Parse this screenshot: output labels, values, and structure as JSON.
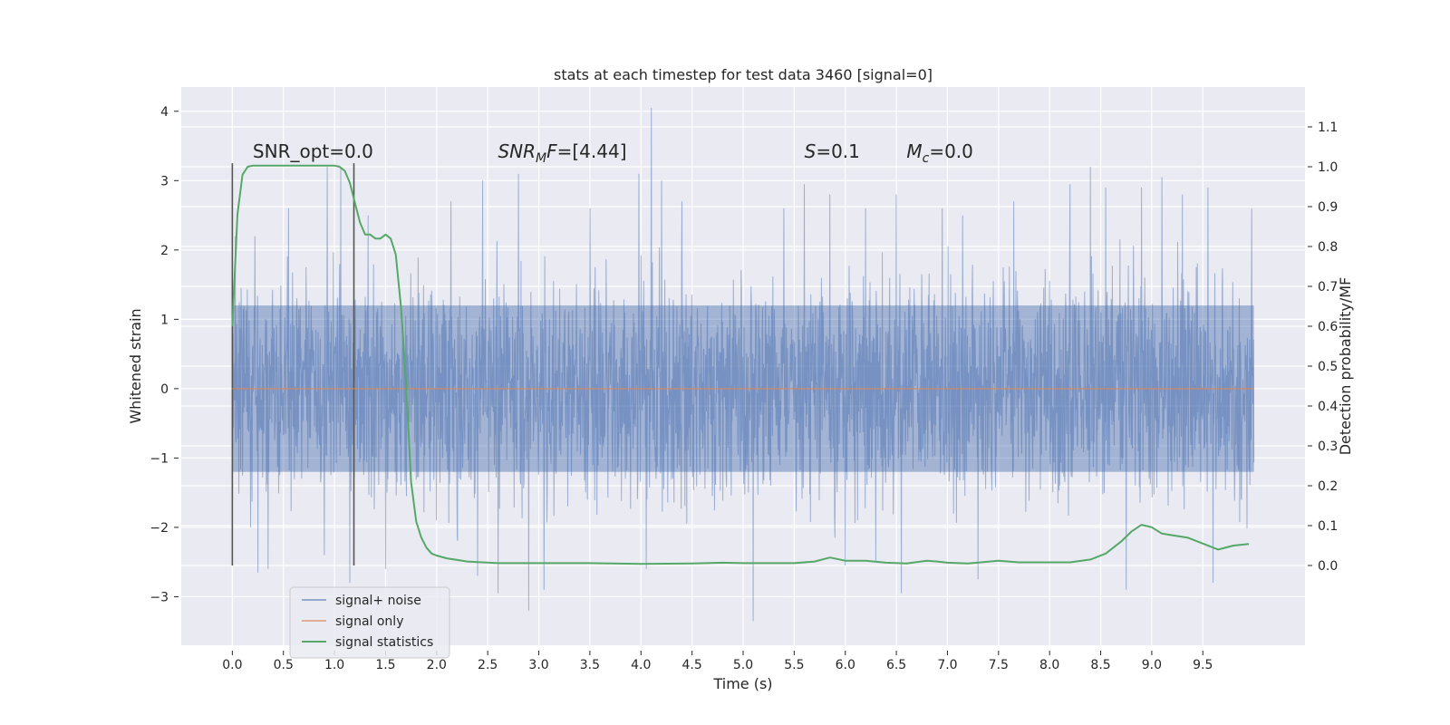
{
  "chart_data": {
    "type": "line",
    "title": "stats at each timestep for test data 3460 [signal=0]",
    "xlabel": "Time (s)",
    "ylabel": "Whitened strain",
    "y2label": "Detection probability/MF",
    "xlim": [
      -0.5,
      10.5
    ],
    "ylim": [
      -3.7,
      4.35
    ],
    "y2lim": [
      -0.2,
      1.2
    ],
    "x_ticks": [
      0.0,
      0.5,
      1.0,
      1.5,
      2.0,
      2.5,
      3.0,
      3.5,
      4.0,
      4.5,
      5.0,
      5.5,
      6.0,
      6.5,
      7.0,
      7.5,
      8.0,
      8.5,
      9.0,
      9.5
    ],
    "x_tick_labels": [
      "0.0",
      "0.5",
      "1.0",
      "1.5",
      "2.0",
      "2.5",
      "3.0",
      "3.5",
      "4.0",
      "4.5",
      "5.0",
      "5.5",
      "6.0",
      "6.5",
      "7.0",
      "7.5",
      "8.0",
      "8.5",
      "9.0",
      "9.5"
    ],
    "y_ticks": [
      -3,
      -2,
      -1,
      0,
      1,
      2,
      3,
      4
    ],
    "y_tick_labels": [
      "−3",
      "−2",
      "−1",
      "0",
      "1",
      "2",
      "3",
      "4"
    ],
    "y2_ticks": [
      0.0,
      0.1,
      0.2,
      0.3,
      0.4,
      0.5,
      0.6,
      0.7,
      0.8,
      0.9,
      1.0,
      1.1
    ],
    "y2_tick_labels": [
      "0.0",
      "0.1",
      "0.2",
      "0.3",
      "0.4",
      "0.5",
      "0.6",
      "0.7",
      "0.8",
      "0.9",
      "1.0",
      "1.1"
    ],
    "grid": true,
    "legend_position": "lower-left",
    "annotations": [
      {
        "text": "SNR_opt=0.0",
        "x": 0.2,
        "y": 3.25
      },
      {
        "text": "SNR",
        "sub": "M",
        "suffix": "F=[4.44]",
        "italic": true,
        "x": 2.6,
        "y": 3.25
      },
      {
        "text": "S",
        "suffix": "=0.1",
        "italic": true,
        "x": 5.6,
        "y": 3.25
      },
      {
        "text": "M",
        "sub": "c",
        "suffix": "=0.0",
        "italic": true,
        "x": 6.6,
        "y": 3.25
      }
    ],
    "vlines": [
      {
        "x": 0.0,
        "ymin": -2.55,
        "ymax": 3.25
      },
      {
        "x": 1.19,
        "ymin": -2.55,
        "ymax": 3.25
      }
    ],
    "series": [
      {
        "name": "signal+ noise",
        "color": "#4c72b0",
        "x_range": [
          0.0,
          10.0
        ],
        "band": 1.2,
        "peaks": [
          [
            0.03,
            2.2
          ],
          [
            0.18,
            -2.0
          ],
          [
            0.22,
            2.2
          ],
          [
            0.25,
            -2.65
          ],
          [
            0.35,
            -2.6
          ],
          [
            0.55,
            2.6
          ],
          [
            0.9,
            -2.4
          ],
          [
            0.93,
            3.2
          ],
          [
            1.06,
            3.2
          ],
          [
            1.15,
            -2.8
          ],
          [
            1.33,
            2.5
          ],
          [
            1.5,
            -2.6
          ],
          [
            2.14,
            2.7
          ],
          [
            2.4,
            -2.7
          ],
          [
            2.45,
            3.0
          ],
          [
            2.6,
            -2.95
          ],
          [
            2.8,
            3.1
          ],
          [
            2.9,
            -3.2
          ],
          [
            3.05,
            -2.9
          ],
          [
            3.5,
            2.6
          ],
          [
            3.98,
            3.1
          ],
          [
            4.05,
            -2.6
          ],
          [
            4.1,
            4.05
          ],
          [
            4.2,
            3.0
          ],
          [
            4.4,
            2.7
          ],
          [
            5.1,
            -3.35
          ],
          [
            5.4,
            2.6
          ],
          [
            5.6,
            2.95
          ],
          [
            5.85,
            2.8
          ],
          [
            6.0,
            -2.55
          ],
          [
            6.2,
            2.6
          ],
          [
            6.3,
            -2.5
          ],
          [
            6.5,
            2.8
          ],
          [
            6.55,
            -2.95
          ],
          [
            6.95,
            2.6
          ],
          [
            7.15,
            2.5
          ],
          [
            7.3,
            -2.75
          ],
          [
            7.65,
            2.7
          ],
          [
            8.2,
            2.95
          ],
          [
            8.4,
            3.2
          ],
          [
            8.55,
            2.9
          ],
          [
            8.75,
            -2.9
          ],
          [
            8.9,
            2.9
          ],
          [
            9.1,
            3.05
          ],
          [
            9.3,
            2.8
          ],
          [
            9.55,
            2.9
          ],
          [
            9.6,
            -2.8
          ],
          [
            9.98,
            2.6
          ]
        ]
      },
      {
        "name": "signal only",
        "color": "#dd8452",
        "x": [
          0.0,
          10.0
        ],
        "values": [
          0.0,
          0.0
        ]
      },
      {
        "name": "signal statistics",
        "color": "#55a868",
        "axis": "right",
        "x": [
          0.0,
          0.05,
          0.1,
          0.15,
          0.2,
          0.3,
          0.5,
          0.7,
          0.9,
          1.0,
          1.05,
          1.1,
          1.15,
          1.2,
          1.25,
          1.3,
          1.35,
          1.4,
          1.45,
          1.5,
          1.55,
          1.6,
          1.65,
          1.7,
          1.75,
          1.8,
          1.85,
          1.9,
          1.95,
          2.0,
          2.1,
          2.3,
          2.6,
          3.0,
          3.5,
          4.0,
          4.5,
          4.8,
          5.0,
          5.5,
          5.7,
          5.85,
          6.0,
          6.2,
          6.4,
          6.6,
          6.8,
          6.9,
          7.0,
          7.2,
          7.5,
          7.7,
          8.0,
          8.2,
          8.4,
          8.55,
          8.7,
          8.8,
          8.9,
          9.0,
          9.1,
          9.2,
          9.35,
          9.5,
          9.65,
          9.8,
          9.95
        ],
        "values": [
          0.6,
          0.88,
          0.98,
          1.0,
          1.003,
          1.003,
          1.003,
          1.003,
          1.003,
          1.003,
          1.0,
          0.99,
          0.96,
          0.91,
          0.86,
          0.83,
          0.83,
          0.82,
          0.82,
          0.83,
          0.82,
          0.78,
          0.65,
          0.46,
          0.21,
          0.11,
          0.07,
          0.045,
          0.03,
          0.025,
          0.018,
          0.01,
          0.006,
          0.006,
          0.006,
          0.004,
          0.005,
          0.007,
          0.006,
          0.006,
          0.01,
          0.02,
          0.012,
          0.012,
          0.007,
          0.005,
          0.012,
          0.01,
          0.007,
          0.005,
          0.012,
          0.008,
          0.008,
          0.008,
          0.015,
          0.03,
          0.06,
          0.085,
          0.102,
          0.096,
          0.08,
          0.076,
          0.07,
          0.055,
          0.04,
          0.05,
          0.054
        ]
      }
    ]
  }
}
